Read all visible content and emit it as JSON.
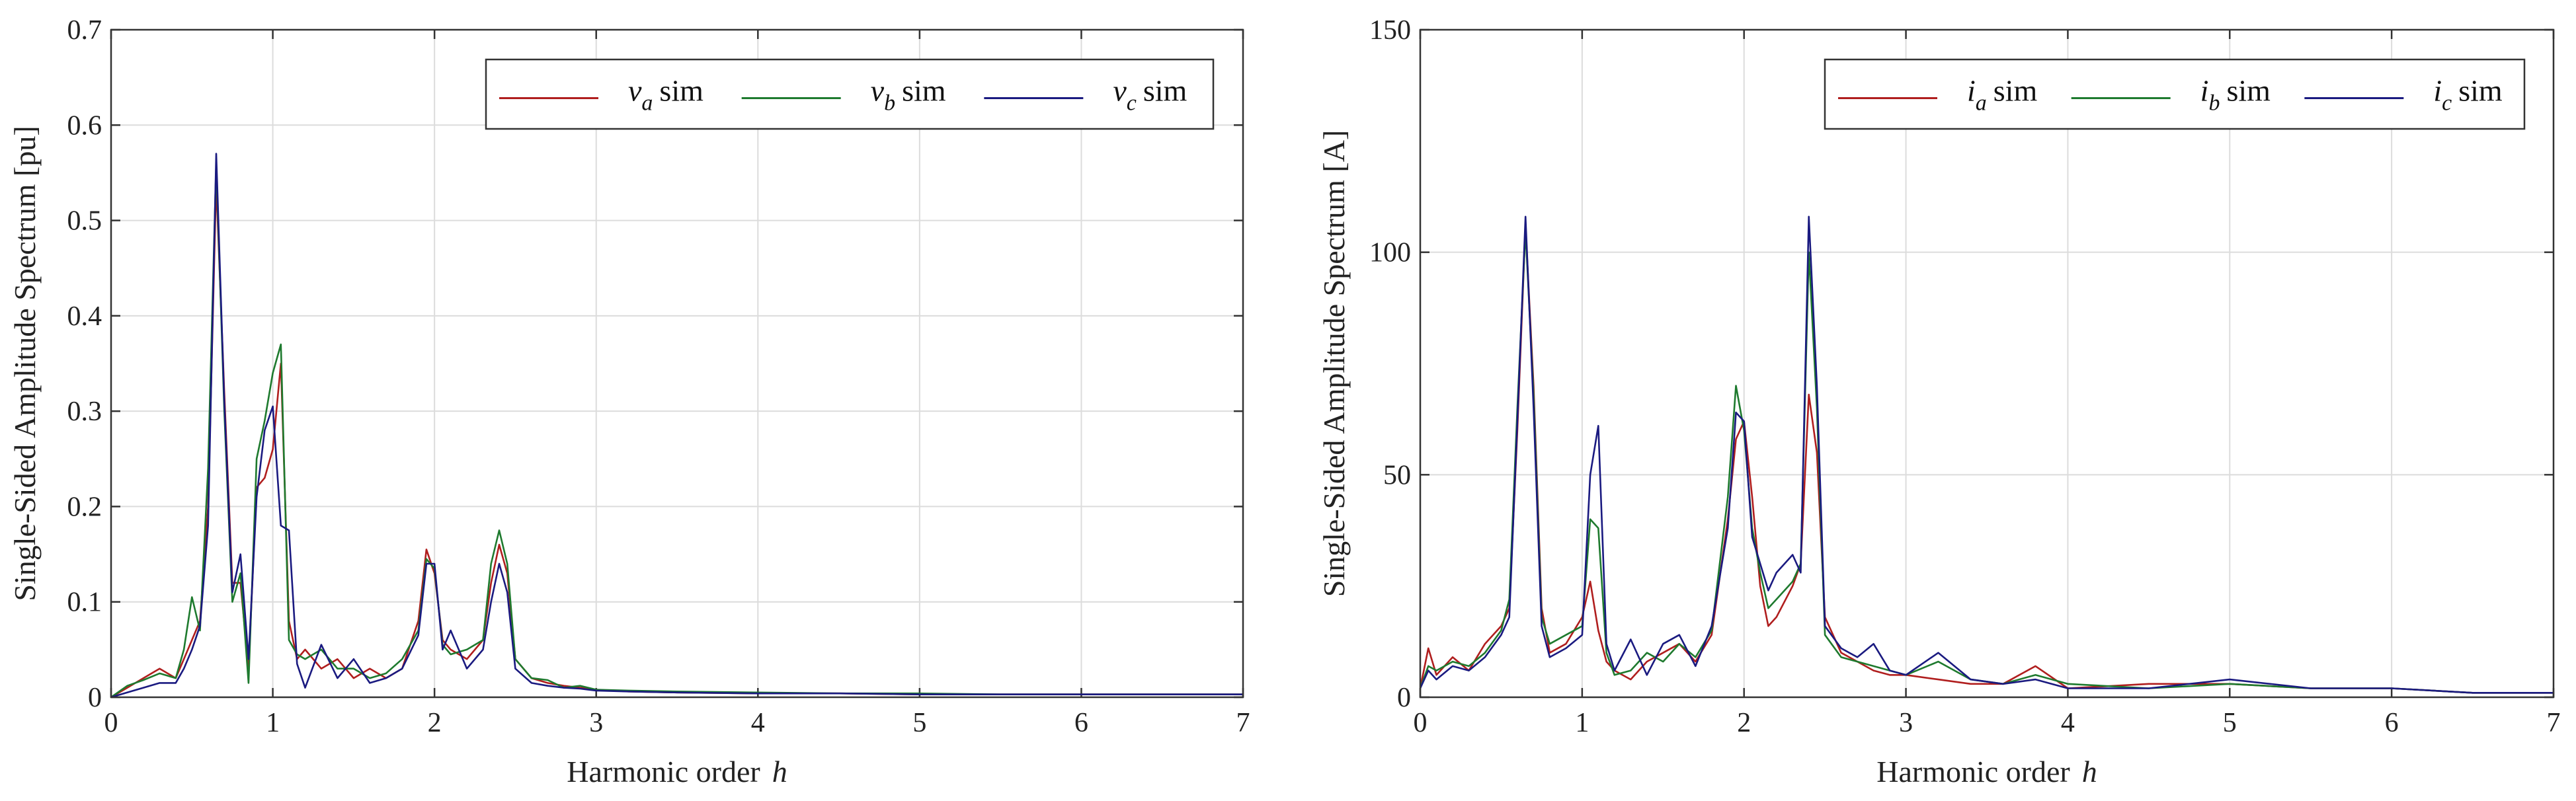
{
  "colors": {
    "red": "#b01e1e",
    "green": "#1e7a2e",
    "blue": "#1a1a80"
  },
  "chart_data": [
    {
      "type": "line",
      "xlabel": "Harmonic order",
      "xlabel_var": "h",
      "ylabel": "Single-Sided Amplitude Spectrum [pu]",
      "xlim": [
        0,
        7
      ],
      "ylim": [
        0,
        0.7
      ],
      "xticks": [
        0,
        1,
        2,
        3,
        4,
        5,
        6,
        7
      ],
      "xtick_labels": [
        "0",
        "1",
        "2",
        "3",
        "4",
        "5",
        "6",
        "7"
      ],
      "yticks": [
        0,
        0.1,
        0.2,
        0.3,
        0.4,
        0.5,
        0.6,
        0.7
      ],
      "ytick_labels": [
        "0",
        "0.1",
        "0.2",
        "0.3",
        "0.4",
        "0.5",
        "0.6",
        "0.7"
      ],
      "grid": true,
      "legend_position": "top-right",
      "series": [
        {
          "name": "v_a sim",
          "symbol": "v",
          "sub": "a",
          "suffix": "sim",
          "color": "red",
          "x": [
            0,
            0.1,
            0.2,
            0.3,
            0.4,
            0.45,
            0.5,
            0.55,
            0.6,
            0.65,
            0.7,
            0.75,
            0.8,
            0.85,
            0.9,
            0.95,
            1.0,
            1.05,
            1.1,
            1.15,
            1.2,
            1.3,
            1.4,
            1.5,
            1.6,
            1.7,
            1.8,
            1.9,
            1.95,
            2.0,
            2.05,
            2.1,
            2.2,
            2.3,
            2.35,
            2.4,
            2.45,
            2.5,
            2.6,
            2.7,
            2.8,
            2.9,
            3.0,
            3.2,
            3.5,
            4.0,
            4.5,
            5.0,
            5.5,
            6.0,
            6.5,
            7.0
          ],
          "values": [
            0.0,
            0.01,
            0.02,
            0.03,
            0.02,
            0.04,
            0.06,
            0.08,
            0.2,
            0.54,
            0.32,
            0.12,
            0.12,
            0.03,
            0.22,
            0.23,
            0.26,
            0.35,
            0.08,
            0.04,
            0.05,
            0.03,
            0.04,
            0.02,
            0.03,
            0.02,
            0.03,
            0.08,
            0.155,
            0.13,
            0.06,
            0.05,
            0.04,
            0.06,
            0.12,
            0.16,
            0.13,
            0.04,
            0.02,
            0.015,
            0.012,
            0.01,
            0.008,
            0.006,
            0.005,
            0.004,
            0.004,
            0.003,
            0.003,
            0.003,
            0.003,
            0.003
          ]
        },
        {
          "name": "v_b sim",
          "symbol": "v",
          "sub": "b",
          "suffix": "sim",
          "color": "green",
          "x": [
            0,
            0.1,
            0.2,
            0.3,
            0.4,
            0.45,
            0.5,
            0.55,
            0.6,
            0.65,
            0.7,
            0.75,
            0.8,
            0.85,
            0.9,
            0.95,
            1.0,
            1.05,
            1.1,
            1.15,
            1.2,
            1.3,
            1.4,
            1.5,
            1.6,
            1.7,
            1.8,
            1.9,
            1.95,
            2.0,
            2.05,
            2.1,
            2.2,
            2.3,
            2.35,
            2.4,
            2.45,
            2.5,
            2.6,
            2.7,
            2.8,
            2.9,
            3.0,
            3.2,
            3.5,
            4.0,
            4.5,
            5.0,
            5.5,
            6.0,
            6.5,
            7.0
          ],
          "values": [
            0.0,
            0.012,
            0.018,
            0.025,
            0.02,
            0.05,
            0.105,
            0.07,
            0.24,
            0.56,
            0.3,
            0.1,
            0.13,
            0.015,
            0.25,
            0.29,
            0.34,
            0.37,
            0.06,
            0.045,
            0.04,
            0.05,
            0.03,
            0.03,
            0.02,
            0.025,
            0.04,
            0.07,
            0.145,
            0.135,
            0.055,
            0.045,
            0.05,
            0.06,
            0.14,
            0.175,
            0.14,
            0.04,
            0.02,
            0.018,
            0.01,
            0.012,
            0.008,
            0.007,
            0.006,
            0.005,
            0.004,
            0.004,
            0.003,
            0.003,
            0.003,
            0.003
          ]
        },
        {
          "name": "v_c sim",
          "symbol": "v",
          "sub": "c",
          "suffix": "sim",
          "color": "blue",
          "x": [
            0,
            0.1,
            0.2,
            0.3,
            0.4,
            0.45,
            0.5,
            0.55,
            0.6,
            0.65,
            0.7,
            0.75,
            0.8,
            0.85,
            0.9,
            0.95,
            1.0,
            1.05,
            1.1,
            1.15,
            1.2,
            1.3,
            1.4,
            1.5,
            1.6,
            1.7,
            1.8,
            1.9,
            1.95,
            2.0,
            2.05,
            2.1,
            2.2,
            2.3,
            2.35,
            2.4,
            2.45,
            2.5,
            2.6,
            2.7,
            2.8,
            2.9,
            3.0,
            3.2,
            3.5,
            4.0,
            4.5,
            5.0,
            5.5,
            6.0,
            6.5,
            7.0
          ],
          "values": [
            0.0,
            0.005,
            0.01,
            0.015,
            0.015,
            0.03,
            0.05,
            0.075,
            0.18,
            0.57,
            0.31,
            0.11,
            0.15,
            0.04,
            0.21,
            0.28,
            0.305,
            0.18,
            0.175,
            0.035,
            0.01,
            0.055,
            0.02,
            0.04,
            0.015,
            0.02,
            0.03,
            0.065,
            0.14,
            0.14,
            0.05,
            0.07,
            0.03,
            0.05,
            0.1,
            0.14,
            0.11,
            0.03,
            0.015,
            0.012,
            0.01,
            0.009,
            0.007,
            0.006,
            0.005,
            0.004,
            0.004,
            0.003,
            0.003,
            0.003,
            0.003,
            0.003
          ]
        }
      ]
    },
    {
      "type": "line",
      "xlabel": "Harmonic order",
      "xlabel_var": "h",
      "ylabel": "Single-Sided Amplitude Spectrum [A]",
      "xlim": [
        0,
        7
      ],
      "ylim": [
        0,
        150
      ],
      "xticks": [
        0,
        1,
        2,
        3,
        4,
        5,
        6,
        7
      ],
      "xtick_labels": [
        "0",
        "1",
        "2",
        "3",
        "4",
        "5",
        "6",
        "7"
      ],
      "yticks": [
        0,
        50,
        100,
        150
      ],
      "ytick_labels": [
        "0",
        "50",
        "100",
        "150"
      ],
      "grid": true,
      "legend_position": "top-right",
      "series": [
        {
          "name": "i_a sim",
          "symbol": "i",
          "sub": "a",
          "suffix": "sim",
          "color": "red",
          "x": [
            0,
            0.05,
            0.1,
            0.2,
            0.3,
            0.4,
            0.5,
            0.55,
            0.6,
            0.65,
            0.7,
            0.75,
            0.8,
            0.9,
            1.0,
            1.05,
            1.1,
            1.15,
            1.2,
            1.3,
            1.4,
            1.5,
            1.6,
            1.7,
            1.8,
            1.9,
            1.95,
            2.0,
            2.05,
            2.1,
            2.15,
            2.2,
            2.3,
            2.35,
            2.4,
            2.45,
            2.5,
            2.6,
            2.7,
            2.8,
            2.9,
            3.0,
            3.2,
            3.4,
            3.6,
            3.8,
            4.0,
            4.5,
            5.0,
            5.5,
            6.0,
            6.5,
            7.0
          ],
          "values": [
            2,
            11,
            5,
            9,
            6,
            12,
            16,
            20,
            60,
            106,
            70,
            20,
            10,
            12,
            18,
            26,
            15,
            8,
            6,
            4,
            8,
            10,
            12,
            8,
            14,
            40,
            58,
            62,
            45,
            25,
            16,
            18,
            25,
            30,
            68,
            55,
            18,
            10,
            8,
            6,
            5,
            5,
            4,
            3,
            3,
            7,
            2,
            3,
            3,
            2,
            2,
            1,
            1
          ]
        },
        {
          "name": "i_b sim",
          "symbol": "i",
          "sub": "b",
          "suffix": "sim",
          "color": "green",
          "x": [
            0,
            0.05,
            0.1,
            0.2,
            0.3,
            0.4,
            0.5,
            0.55,
            0.6,
            0.65,
            0.7,
            0.75,
            0.8,
            0.9,
            1.0,
            1.05,
            1.1,
            1.15,
            1.2,
            1.3,
            1.4,
            1.5,
            1.6,
            1.7,
            1.8,
            1.9,
            1.95,
            2.0,
            2.05,
            2.1,
            2.15,
            2.2,
            2.3,
            2.35,
            2.4,
            2.45,
            2.5,
            2.6,
            2.7,
            2.8,
            2.9,
            3.0,
            3.2,
            3.4,
            3.6,
            3.8,
            4.0,
            4.5,
            5.0,
            5.5,
            6.0,
            6.5,
            7.0
          ],
          "values": [
            2,
            7,
            6,
            8,
            7,
            10,
            15,
            22,
            65,
            105,
            68,
            18,
            12,
            14,
            16,
            40,
            38,
            10,
            5,
            6,
            10,
            8,
            12,
            9,
            15,
            45,
            70,
            60,
            38,
            28,
            20,
            22,
            26,
            30,
            100,
            65,
            14,
            9,
            8,
            7,
            6,
            5,
            8,
            4,
            3,
            5,
            3,
            2,
            3,
            2,
            2,
            1,
            1
          ]
        },
        {
          "name": "i_c sim",
          "symbol": "i",
          "sub": "c",
          "suffix": "sim",
          "color": "blue",
          "x": [
            0,
            0.05,
            0.1,
            0.2,
            0.3,
            0.4,
            0.5,
            0.55,
            0.6,
            0.65,
            0.7,
            0.75,
            0.8,
            0.9,
            1.0,
            1.05,
            1.1,
            1.15,
            1.2,
            1.3,
            1.4,
            1.5,
            1.6,
            1.7,
            1.8,
            1.9,
            1.95,
            2.0,
            2.05,
            2.1,
            2.15,
            2.2,
            2.3,
            2.35,
            2.4,
            2.45,
            2.5,
            2.6,
            2.7,
            2.8,
            2.9,
            3.0,
            3.2,
            3.4,
            3.6,
            3.8,
            4.0,
            4.5,
            5.0,
            5.5,
            6.0,
            6.5,
            7.0
          ],
          "values": [
            2,
            6,
            4,
            7,
            6,
            9,
            14,
            18,
            62,
            108,
            65,
            16,
            9,
            11,
            14,
            50,
            61,
            12,
            6,
            13,
            5,
            12,
            14,
            7,
            16,
            38,
            64,
            62,
            36,
            30,
            24,
            28,
            32,
            28,
            108,
            70,
            16,
            11,
            9,
            12,
            6,
            5,
            10,
            4,
            3,
            4,
            2,
            2,
            4,
            2,
            2,
            1,
            1
          ]
        }
      ]
    }
  ]
}
